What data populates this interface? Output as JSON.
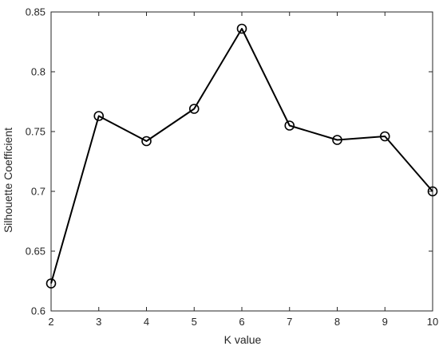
{
  "chart_data": {
    "type": "line",
    "title": "",
    "xlabel": "K value",
    "ylabel": "Silhouette Coefficient",
    "x": [
      2,
      3,
      4,
      5,
      6,
      7,
      8,
      9,
      10
    ],
    "series": [
      {
        "values": [
          0.623,
          0.763,
          0.742,
          0.769,
          0.836,
          0.755,
          0.743,
          0.746,
          0.7
        ],
        "color": "#000000",
        "marker": "open-circle"
      }
    ],
    "xlim": [
      2,
      10
    ],
    "ylim": [
      0.6,
      0.85
    ],
    "xticks": [
      2,
      3,
      4,
      5,
      6,
      7,
      8,
      9,
      10
    ],
    "xtick_labels": [
      "2",
      "3",
      "4",
      "5",
      "6",
      "7",
      "8",
      "9",
      "10"
    ],
    "yticks": [
      0.6,
      0.65,
      0.7,
      0.75,
      0.8,
      0.85
    ],
    "ytick_labels": [
      "0.6",
      "0.65",
      "0.7",
      "0.75",
      "0.8",
      "0.85"
    ],
    "grid": false,
    "box": true
  }
}
